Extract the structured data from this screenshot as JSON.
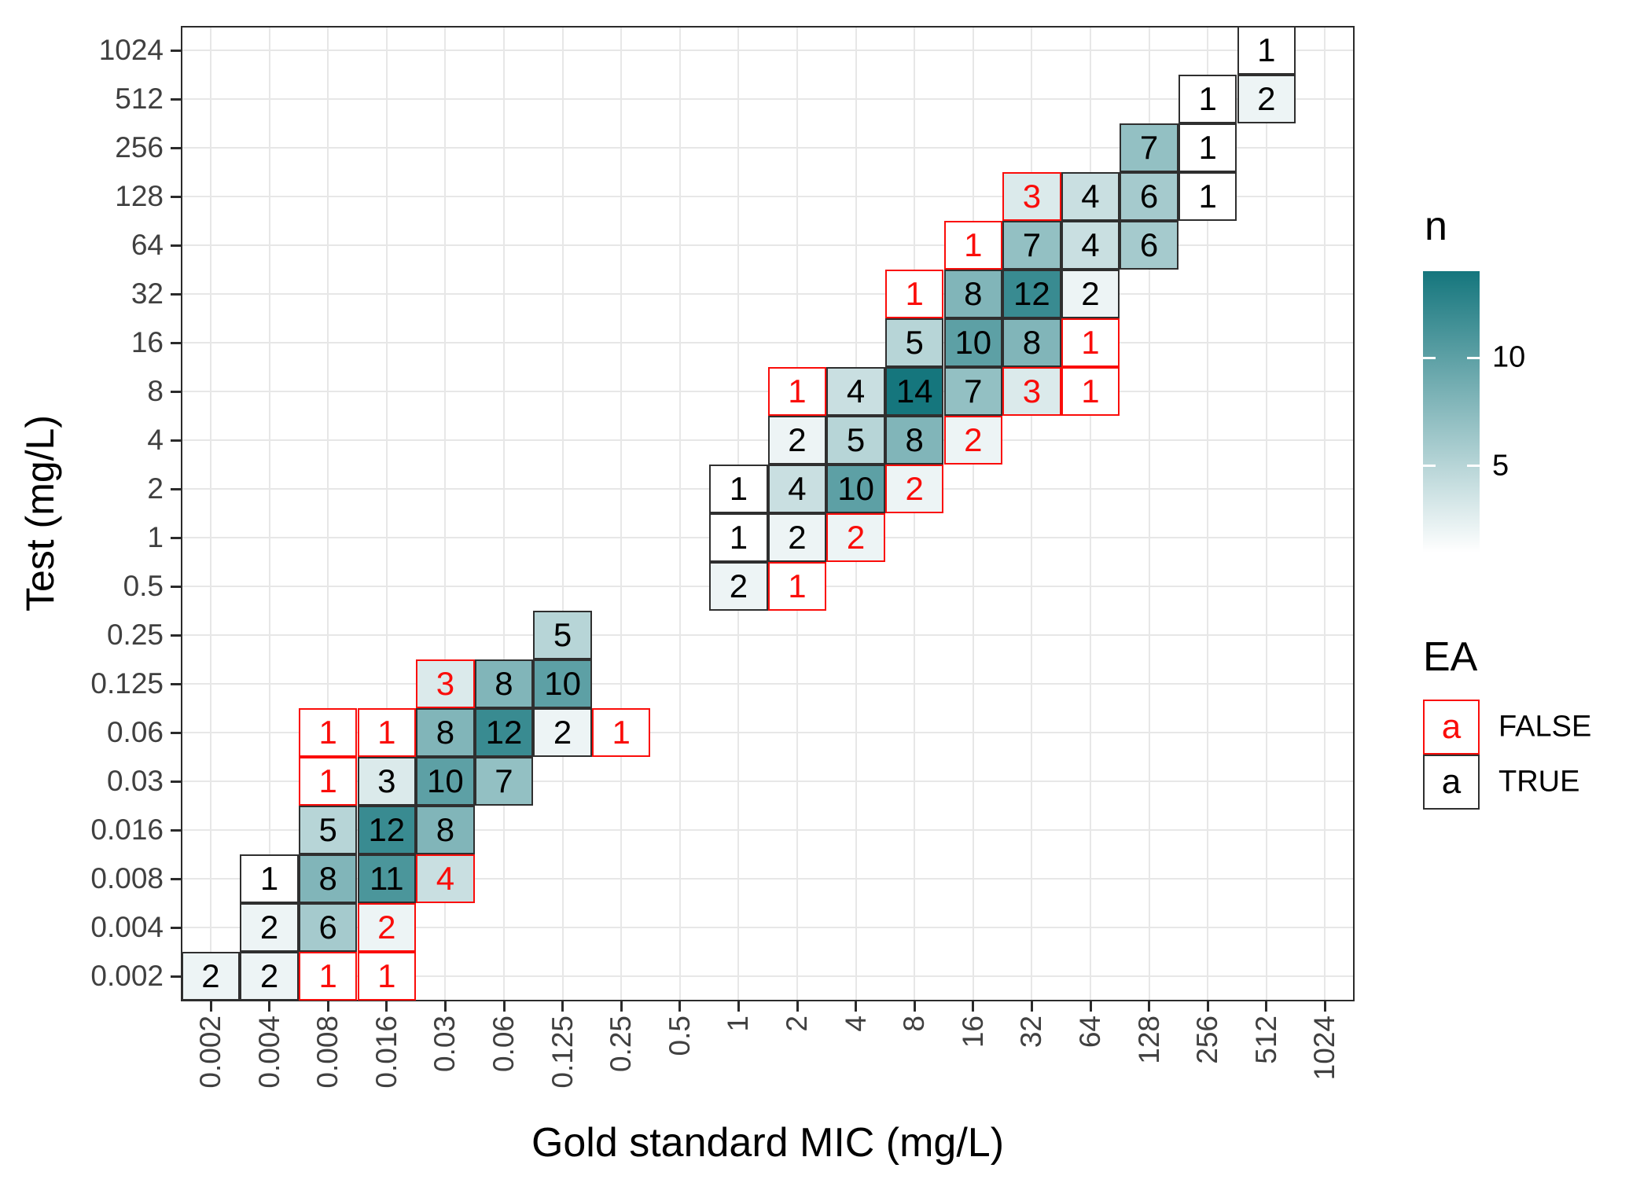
{
  "chart_data": {
    "type": "heatmap",
    "title": "",
    "xlabel": "Gold standard MIC (mg/L)",
    "ylabel": "Test (mg/L)",
    "x_categories": [
      "0.002",
      "0.004",
      "0.008",
      "0.016",
      "0.03",
      "0.06",
      "0.125",
      "0.25",
      "0.5",
      "1",
      "2",
      "4",
      "8",
      "16",
      "32",
      "64",
      "128",
      "256",
      "512",
      "1024"
    ],
    "y_categories": [
      "0.002",
      "0.004",
      "0.008",
      "0.016",
      "0.03",
      "0.06",
      "0.125",
      "0.25",
      "0.5",
      "1",
      "2",
      "4",
      "8",
      "16",
      "32",
      "64",
      "128",
      "256",
      "512",
      "1024"
    ],
    "grid": true,
    "fill": {
      "legend_title": "n",
      "low_color": "#FFFFFF",
      "high_color": "#15767D",
      "domain": [
        1,
        14
      ],
      "legend_ticks": [
        {
          "value": 10,
          "label": "10"
        },
        {
          "value": 5,
          "label": "5"
        }
      ]
    },
    "ea_legend": {
      "title": "EA",
      "key_glyph": "a",
      "items": [
        {
          "label": "FALSE",
          "ea": false
        },
        {
          "label": "TRUE",
          "ea": true
        }
      ]
    },
    "cells": [
      {
        "x": "512",
        "y": "1024",
        "n": 1,
        "ea": true
      },
      {
        "x": "256",
        "y": "512",
        "n": 1,
        "ea": true
      },
      {
        "x": "512",
        "y": "512",
        "n": 2,
        "ea": true
      },
      {
        "x": "128",
        "y": "256",
        "n": 7,
        "ea": true
      },
      {
        "x": "256",
        "y": "256",
        "n": 1,
        "ea": true
      },
      {
        "x": "32",
        "y": "128",
        "n": 3,
        "ea": false
      },
      {
        "x": "64",
        "y": "128",
        "n": 4,
        "ea": true
      },
      {
        "x": "128",
        "y": "128",
        "n": 6,
        "ea": true
      },
      {
        "x": "256",
        "y": "128",
        "n": 1,
        "ea": true
      },
      {
        "x": "16",
        "y": "64",
        "n": 1,
        "ea": false
      },
      {
        "x": "32",
        "y": "64",
        "n": 7,
        "ea": true
      },
      {
        "x": "64",
        "y": "64",
        "n": 4,
        "ea": true
      },
      {
        "x": "128",
        "y": "64",
        "n": 6,
        "ea": true
      },
      {
        "x": "8",
        "y": "32",
        "n": 1,
        "ea": false
      },
      {
        "x": "16",
        "y": "32",
        "n": 8,
        "ea": true
      },
      {
        "x": "32",
        "y": "32",
        "n": 12,
        "ea": true
      },
      {
        "x": "64",
        "y": "32",
        "n": 2,
        "ea": true
      },
      {
        "x": "8",
        "y": "16",
        "n": 5,
        "ea": true
      },
      {
        "x": "16",
        "y": "16",
        "n": 10,
        "ea": true
      },
      {
        "x": "32",
        "y": "16",
        "n": 8,
        "ea": true
      },
      {
        "x": "64",
        "y": "16",
        "n": 1,
        "ea": false
      },
      {
        "x": "2",
        "y": "8",
        "n": 1,
        "ea": false
      },
      {
        "x": "4",
        "y": "8",
        "n": 4,
        "ea": true
      },
      {
        "x": "8",
        "y": "8",
        "n": 14,
        "ea": true
      },
      {
        "x": "16",
        "y": "8",
        "n": 7,
        "ea": true
      },
      {
        "x": "32",
        "y": "8",
        "n": 3,
        "ea": false
      },
      {
        "x": "64",
        "y": "8",
        "n": 1,
        "ea": false
      },
      {
        "x": "2",
        "y": "4",
        "n": 2,
        "ea": true
      },
      {
        "x": "4",
        "y": "4",
        "n": 5,
        "ea": true
      },
      {
        "x": "8",
        "y": "4",
        "n": 8,
        "ea": true
      },
      {
        "x": "16",
        "y": "4",
        "n": 2,
        "ea": false
      },
      {
        "x": "1",
        "y": "2",
        "n": 1,
        "ea": true
      },
      {
        "x": "2",
        "y": "2",
        "n": 4,
        "ea": true
      },
      {
        "x": "4",
        "y": "2",
        "n": 10,
        "ea": true
      },
      {
        "x": "8",
        "y": "2",
        "n": 2,
        "ea": false
      },
      {
        "x": "1",
        "y": "1",
        "n": 1,
        "ea": true
      },
      {
        "x": "2",
        "y": "1",
        "n": 2,
        "ea": true
      },
      {
        "x": "4",
        "y": "1",
        "n": 2,
        "ea": false
      },
      {
        "x": "1",
        "y": "0.5",
        "n": 2,
        "ea": true
      },
      {
        "x": "2",
        "y": "0.5",
        "n": 1,
        "ea": false
      },
      {
        "x": "0.125",
        "y": "0.25",
        "n": 5,
        "ea": true
      },
      {
        "x": "0.03",
        "y": "0.125",
        "n": 3,
        "ea": false
      },
      {
        "x": "0.06",
        "y": "0.125",
        "n": 8,
        "ea": true
      },
      {
        "x": "0.125",
        "y": "0.125",
        "n": 10,
        "ea": true
      },
      {
        "x": "0.008",
        "y": "0.06",
        "n": 1,
        "ea": false
      },
      {
        "x": "0.016",
        "y": "0.06",
        "n": 1,
        "ea": false
      },
      {
        "x": "0.03",
        "y": "0.06",
        "n": 8,
        "ea": true
      },
      {
        "x": "0.06",
        "y": "0.06",
        "n": 12,
        "ea": true
      },
      {
        "x": "0.125",
        "y": "0.06",
        "n": 2,
        "ea": true
      },
      {
        "x": "0.25",
        "y": "0.06",
        "n": 1,
        "ea": false
      },
      {
        "x": "0.008",
        "y": "0.03",
        "n": 1,
        "ea": false
      },
      {
        "x": "0.016",
        "y": "0.03",
        "n": 3,
        "ea": true
      },
      {
        "x": "0.03",
        "y": "0.03",
        "n": 10,
        "ea": true
      },
      {
        "x": "0.06",
        "y": "0.03",
        "n": 7,
        "ea": true
      },
      {
        "x": "0.008",
        "y": "0.016",
        "n": 5,
        "ea": true
      },
      {
        "x": "0.016",
        "y": "0.016",
        "n": 12,
        "ea": true
      },
      {
        "x": "0.03",
        "y": "0.016",
        "n": 8,
        "ea": true
      },
      {
        "x": "0.004",
        "y": "0.008",
        "n": 1,
        "ea": true
      },
      {
        "x": "0.008",
        "y": "0.008",
        "n": 8,
        "ea": true
      },
      {
        "x": "0.016",
        "y": "0.008",
        "n": 11,
        "ea": true
      },
      {
        "x": "0.03",
        "y": "0.008",
        "n": 4,
        "ea": false
      },
      {
        "x": "0.004",
        "y": "0.004",
        "n": 2,
        "ea": true
      },
      {
        "x": "0.008",
        "y": "0.004",
        "n": 6,
        "ea": true
      },
      {
        "x": "0.016",
        "y": "0.004",
        "n": 2,
        "ea": false
      },
      {
        "x": "0.002",
        "y": "0.002",
        "n": 2,
        "ea": true
      },
      {
        "x": "0.004",
        "y": "0.002",
        "n": 2,
        "ea": true
      },
      {
        "x": "0.008",
        "y": "0.002",
        "n": 1,
        "ea": false
      },
      {
        "x": "0.016",
        "y": "0.002",
        "n": 1,
        "ea": false
      }
    ]
  },
  "colors": {
    "background": "#FFFFFF",
    "grid": "#E7E7E7",
    "panel_border": "#2B2B2B",
    "axis_text": "#404040",
    "title_text": "#000000",
    "false_red": "#FA0D0A",
    "true_border": "#2F2F2F",
    "cell_text": "#000000"
  }
}
